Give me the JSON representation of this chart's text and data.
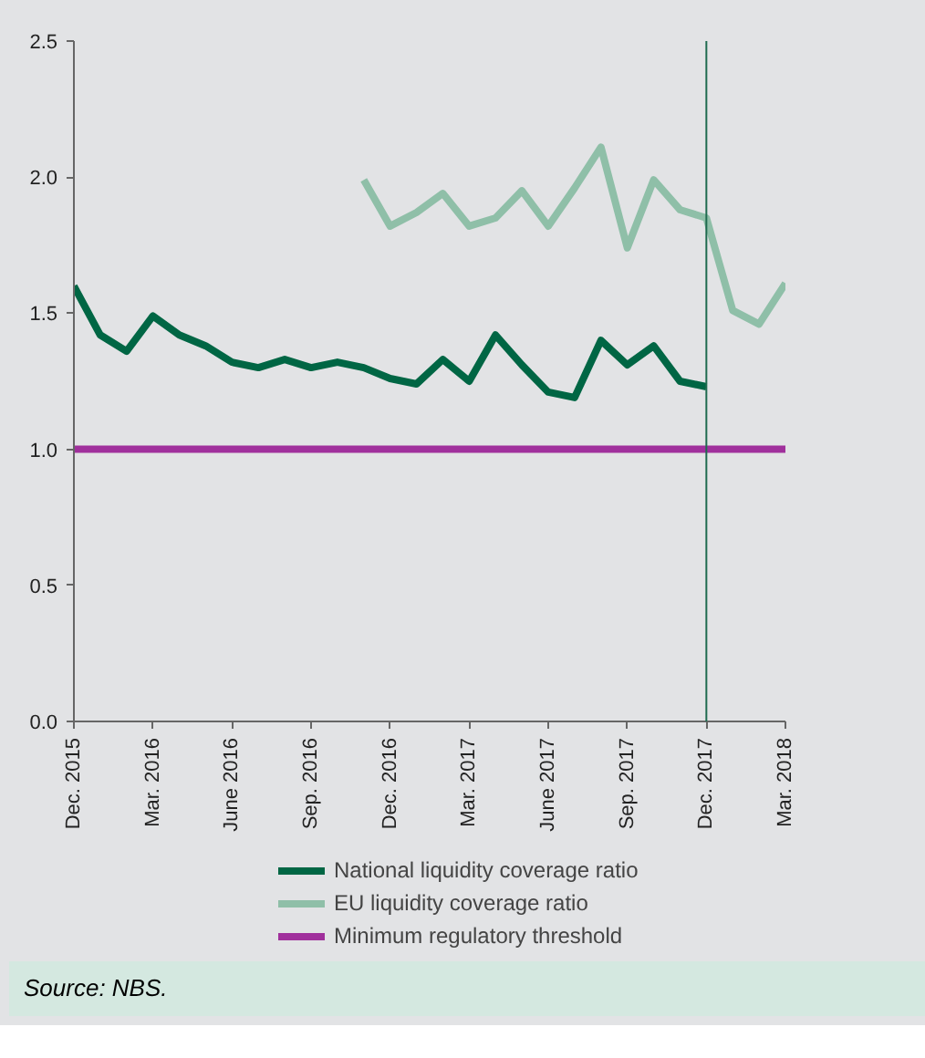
{
  "chart_data": {
    "type": "line",
    "x": [
      "2015-12",
      "2016-01",
      "2016-02",
      "2016-03",
      "2016-04",
      "2016-05",
      "2016-06",
      "2016-07",
      "2016-08",
      "2016-09",
      "2016-10",
      "2016-11",
      "2016-12",
      "2017-01",
      "2017-02",
      "2017-03",
      "2017-04",
      "2017-05",
      "2017-06",
      "2017-07",
      "2017-08",
      "2017-09",
      "2017-10",
      "2017-11",
      "2017-12",
      "2018-01",
      "2018-02",
      "2018-03"
    ],
    "series": [
      {
        "name": "National liquidity coverage ratio",
        "color": "#006644",
        "values": [
          1.6,
          1.42,
          1.36,
          1.49,
          1.42,
          1.38,
          1.32,
          1.3,
          1.33,
          1.3,
          1.32,
          1.3,
          1.26,
          1.24,
          1.33,
          1.25,
          1.42,
          1.31,
          1.21,
          1.19,
          1.4,
          1.31,
          1.38,
          1.25,
          1.23,
          null,
          null,
          null
        ]
      },
      {
        "name": "EU liquidity coverage ratio",
        "color": "#8fbfa8",
        "values": [
          null,
          null,
          null,
          null,
          null,
          null,
          null,
          null,
          null,
          null,
          null,
          1.99,
          1.82,
          1.87,
          1.94,
          1.82,
          1.85,
          1.95,
          1.82,
          1.96,
          2.11,
          1.74,
          1.99,
          1.88,
          1.85,
          1.51,
          1.46,
          1.61
        ]
      },
      {
        "name": "Minimum regulatory threshold",
        "color": "#a0309c",
        "values": [
          1.0,
          1.0,
          1.0,
          1.0,
          1.0,
          1.0,
          1.0,
          1.0,
          1.0,
          1.0,
          1.0,
          1.0,
          1.0,
          1.0,
          1.0,
          1.0,
          1.0,
          1.0,
          1.0,
          1.0,
          1.0,
          1.0,
          1.0,
          1.0,
          1.0,
          1.0,
          1.0,
          1.0
        ]
      }
    ],
    "xlim": [
      "2015-12",
      "2018-03"
    ],
    "xticks": [
      {
        "value": "2015-12",
        "label": "Dec. 2015"
      },
      {
        "value": "2016-03",
        "label": "Mar. 2016"
      },
      {
        "value": "2016-06",
        "label": "June 2016"
      },
      {
        "value": "2016-09",
        "label": "Sep. 2016"
      },
      {
        "value": "2016-12",
        "label": "Dec. 2016"
      },
      {
        "value": "2017-03",
        "label": "Mar. 2017"
      },
      {
        "value": "2017-06",
        "label": "June 2017"
      },
      {
        "value": "2017-09",
        "label": "Sep. 2017"
      },
      {
        "value": "2017-12",
        "label": "Dec. 2017"
      },
      {
        "value": "2018-03",
        "label": "Mar. 2018"
      }
    ],
    "ylim": [
      0,
      2.5
    ],
    "yticks": [
      {
        "value": 0,
        "label": "0.0"
      },
      {
        "value": 0.5,
        "label": "0.5"
      },
      {
        "value": 1,
        "label": "1.0"
      },
      {
        "value": 1.5,
        "label": "1.5"
      },
      {
        "value": 2,
        "label": "2.0"
      },
      {
        "value": 2.5,
        "label": "2.5"
      }
    ],
    "ref_lines": [
      {
        "axis": "x",
        "value": "2017-12",
        "color": "#1f6b4f"
      }
    ],
    "annotations": [
      "Source: NBS."
    ],
    "grid": false,
    "legend": "bottom",
    "marker": "none",
    "line_style": "solid"
  }
}
